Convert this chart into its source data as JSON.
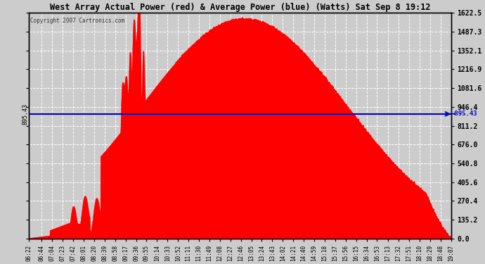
{
  "title": "West Array Actual Power (red) & Average Power (blue) (Watts) Sat Sep 8 19:12",
  "copyright": "Copyright 2007 Cartronics.com",
  "avg_power": 895.43,
  "ymax": 1622.5,
  "ymin": 0.0,
  "yticks": [
    0.0,
    135.2,
    270.4,
    405.6,
    540.8,
    676.0,
    811.2,
    946.4,
    1081.6,
    1216.9,
    1352.1,
    1487.3,
    1622.5
  ],
  "bg_color": "#cccccc",
  "plot_bg": "#cccccc",
  "grid_color": "#ffffff",
  "fill_color": "#ff0000",
  "line_color": "#0000cc",
  "x_times": [
    "06:22",
    "06:44",
    "07:04",
    "07:23",
    "07:42",
    "08:01",
    "08:20",
    "08:39",
    "08:58",
    "09:17",
    "09:36",
    "09:55",
    "10:14",
    "10:33",
    "10:52",
    "11:11",
    "11:30",
    "11:49",
    "12:08",
    "12:27",
    "12:46",
    "13:05",
    "13:24",
    "13:43",
    "14:02",
    "14:21",
    "14:40",
    "14:59",
    "15:18",
    "15:37",
    "15:56",
    "16:15",
    "16:34",
    "16:53",
    "17:13",
    "17:32",
    "17:51",
    "18:10",
    "18:29",
    "18:48",
    "19:07"
  ]
}
